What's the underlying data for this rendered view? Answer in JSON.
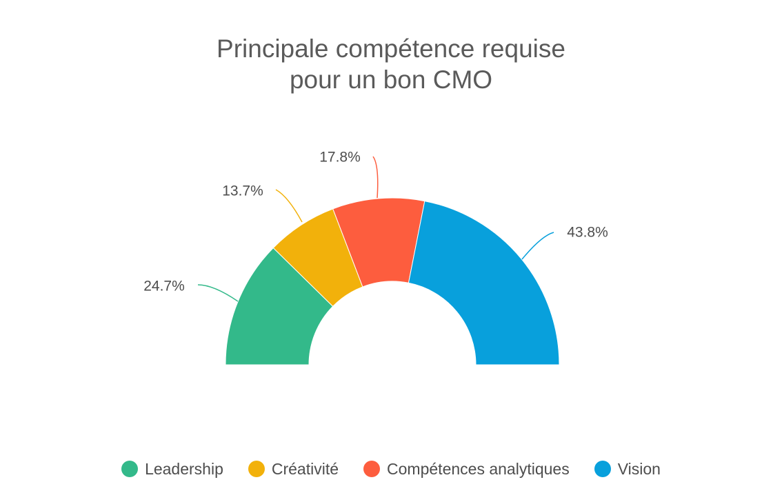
{
  "chart_data": {
    "type": "pie",
    "variant": "semi-donut",
    "title_lines": [
      "Principale compétence requise",
      "pour un bon CMO"
    ],
    "series": [
      {
        "name": "Leadership",
        "value": 24.7,
        "label": "24.7%",
        "color": "#33b98a"
      },
      {
        "name": "Créativité",
        "value": 13.7,
        "label": "13.7%",
        "color": "#f2b10b"
      },
      {
        "name": "Compétences analytiques",
        "value": 17.8,
        "label": "17.8%",
        "color": "#fd5d3e"
      },
      {
        "name": "Vision",
        "value": 43.8,
        "label": "43.8%",
        "color": "#08a0dc"
      }
    ],
    "legend_position": "bottom"
  }
}
